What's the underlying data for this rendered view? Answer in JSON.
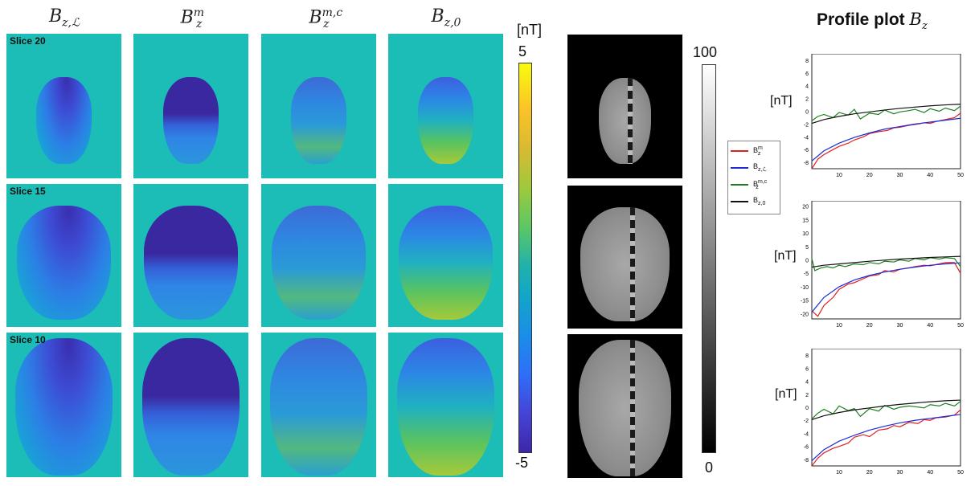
{
  "column_headers": [
    {
      "base": "B",
      "sub": "z,ℒ",
      "sup": ""
    },
    {
      "base": "B",
      "sub": "z",
      "sup": "m"
    },
    {
      "base": "B",
      "sub": "z",
      "sup": "m,c"
    },
    {
      "base": "B",
      "sub": "z,0",
      "sup": ""
    }
  ],
  "rows": [
    {
      "slice_label": "Slice 20"
    },
    {
      "slice_label": "Slice 15"
    },
    {
      "slice_label": "Slice 10"
    }
  ],
  "colorbar_field": {
    "unit": "[nT]",
    "max": "5",
    "min": "-5"
  },
  "colorbar_gray": {
    "max": "100",
    "min": "0"
  },
  "profile": {
    "title_text": "Profile plot ",
    "title_sym": "B",
    "title_sub": "z",
    "ylabel": "[nT]",
    "legend": [
      {
        "base": "B",
        "sup": "m",
        "sub": "z",
        "color": "#e02020"
      },
      {
        "base": "B",
        "sup": "",
        "sub": "z,ℒ",
        "color": "#1c2bd6"
      },
      {
        "base": "B",
        "sup": "m,c",
        "sub": "z",
        "color": "#208020"
      },
      {
        "base": "B",
        "sup": "",
        "sub": "z,0",
        "color": "#111111"
      }
    ]
  },
  "chart_data": [
    {
      "type": "line",
      "ylim": [
        -9,
        9
      ],
      "xlim": [
        1,
        50
      ],
      "xticks": [
        "10",
        "20",
        "30",
        "40",
        "50"
      ],
      "yticks": [
        "8",
        "6",
        "4",
        "2",
        "0",
        "-2",
        "-4",
        "-6",
        "-8"
      ],
      "ylabel": "[nT]",
      "series": [
        {
          "name_ref": 0,
          "values": [
            [
              1,
              -9
            ],
            [
              3,
              -7.5
            ],
            [
              5,
              -6.8
            ],
            [
              8,
              -6
            ],
            [
              10,
              -5.5
            ],
            [
              13,
              -5
            ],
            [
              15,
              -4.5
            ],
            [
              18,
              -4
            ],
            [
              20,
              -3.5
            ],
            [
              23,
              -3.2
            ],
            [
              26,
              -3
            ],
            [
              28,
              -2.6
            ],
            [
              30,
              -2.5
            ],
            [
              33,
              -2.2
            ],
            [
              36,
              -2
            ],
            [
              38,
              -1.8
            ],
            [
              40,
              -1.9
            ],
            [
              42,
              -1.6
            ],
            [
              45,
              -1.3
            ],
            [
              48,
              -1
            ],
            [
              50,
              -0.3
            ]
          ]
        },
        {
          "name_ref": 1,
          "values": [
            [
              1,
              -7.8
            ],
            [
              5,
              -6.2
            ],
            [
              10,
              -5
            ],
            [
              15,
              -4.1
            ],
            [
              20,
              -3.4
            ],
            [
              25,
              -2.8
            ],
            [
              30,
              -2.4
            ],
            [
              35,
              -2
            ],
            [
              40,
              -1.7
            ],
            [
              45,
              -1.4
            ],
            [
              50,
              -1.1
            ]
          ]
        },
        {
          "name_ref": 2,
          "values": [
            [
              1,
              -1.5
            ],
            [
              3,
              -0.8
            ],
            [
              5,
              -0.5
            ],
            [
              8,
              -1
            ],
            [
              10,
              -0.2
            ],
            [
              13,
              -0.6
            ],
            [
              15,
              0.3
            ],
            [
              17,
              -1.2
            ],
            [
              20,
              -0.3
            ],
            [
              23,
              -0.5
            ],
            [
              25,
              0.2
            ],
            [
              28,
              -0.4
            ],
            [
              30,
              -0.1
            ],
            [
              33,
              0.1
            ],
            [
              35,
              0.3
            ],
            [
              38,
              -0.2
            ],
            [
              40,
              0.4
            ],
            [
              43,
              0
            ],
            [
              45,
              0.5
            ],
            [
              48,
              0.1
            ],
            [
              50,
              0.8
            ]
          ]
        },
        {
          "name_ref": 3,
          "values": [
            [
              1,
              -1.9
            ],
            [
              5,
              -1.3
            ],
            [
              10,
              -0.8
            ],
            [
              15,
              -0.4
            ],
            [
              20,
              -0.1
            ],
            [
              25,
              0.2
            ],
            [
              30,
              0.45
            ],
            [
              35,
              0.65
            ],
            [
              40,
              0.85
            ],
            [
              45,
              1.0
            ],
            [
              50,
              1.1
            ]
          ]
        }
      ]
    },
    {
      "type": "line",
      "ylim": [
        -22,
        22
      ],
      "xlim": [
        1,
        50
      ],
      "xticks": [
        "10",
        "20",
        "30",
        "40",
        "50"
      ],
      "yticks": [
        "20",
        "15",
        "10",
        "5",
        "0",
        "-5",
        "-10",
        "-15",
        "-20"
      ],
      "ylabel": "[nT]",
      "series": [
        {
          "name_ref": 0,
          "values": [
            [
              1,
              -19
            ],
            [
              3,
              -21
            ],
            [
              5,
              -17
            ],
            [
              8,
              -14
            ],
            [
              10,
              -11
            ],
            [
              13,
              -9
            ],
            [
              15,
              -8.5
            ],
            [
              18,
              -7
            ],
            [
              20,
              -6
            ],
            [
              23,
              -5.5
            ],
            [
              25,
              -4
            ],
            [
              28,
              -4.5
            ],
            [
              30,
              -3.5
            ],
            [
              33,
              -3
            ],
            [
              35,
              -2.5
            ],
            [
              38,
              -2
            ],
            [
              40,
              -2.2
            ],
            [
              43,
              -1.5
            ],
            [
              45,
              -1
            ],
            [
              48,
              -1
            ],
            [
              50,
              -5
            ]
          ]
        },
        {
          "name_ref": 1,
          "values": [
            [
              1,
              -19.5
            ],
            [
              5,
              -14
            ],
            [
              10,
              -10
            ],
            [
              15,
              -7.5
            ],
            [
              20,
              -5.8
            ],
            [
              25,
              -4.5
            ],
            [
              30,
              -3.5
            ],
            [
              35,
              -2.7
            ],
            [
              40,
              -2
            ],
            [
              45,
              -1.5
            ],
            [
              50,
              -1.1
            ]
          ]
        },
        {
          "name_ref": 2,
          "values": [
            [
              1,
              0.5
            ],
            [
              2,
              -4
            ],
            [
              4,
              -3
            ],
            [
              6,
              -2.5
            ],
            [
              8,
              -3
            ],
            [
              10,
              -2
            ],
            [
              12,
              -2.5
            ],
            [
              15,
              -1.5
            ],
            [
              18,
              -1.8
            ],
            [
              20,
              -1
            ],
            [
              23,
              -1.5
            ],
            [
              25,
              -0.5
            ],
            [
              28,
              -0.8
            ],
            [
              30,
              0
            ],
            [
              33,
              -0.5
            ],
            [
              35,
              0.5
            ],
            [
              38,
              0
            ],
            [
              40,
              0.8
            ],
            [
              43,
              0.3
            ],
            [
              45,
              0.8
            ],
            [
              48,
              0.5
            ],
            [
              50,
              -2.5
            ]
          ]
        },
        {
          "name_ref": 3,
          "values": [
            [
              1,
              -2.7
            ],
            [
              5,
              -2
            ],
            [
              10,
              -1.5
            ],
            [
              15,
              -1
            ],
            [
              20,
              -0.5
            ],
            [
              25,
              -0.1
            ],
            [
              30,
              0.3
            ],
            [
              35,
              0.6
            ],
            [
              40,
              0.9
            ],
            [
              45,
              1.1
            ],
            [
              50,
              1.3
            ]
          ]
        }
      ]
    },
    {
      "type": "line",
      "ylim": [
        -9,
        9
      ],
      "xlim": [
        1,
        50
      ],
      "xticks": [
        "10",
        "20",
        "30",
        "40",
        "50"
      ],
      "yticks": [
        "8",
        "6",
        "4",
        "2",
        "0",
        "-2",
        "-4",
        "-6",
        "-8"
      ],
      "ylabel": "[nT]",
      "series": [
        {
          "name_ref": 0,
          "values": [
            [
              1,
              -9
            ],
            [
              3,
              -7.8
            ],
            [
              5,
              -7
            ],
            [
              8,
              -6.3
            ],
            [
              10,
              -6
            ],
            [
              13,
              -5.5
            ],
            [
              15,
              -4.6
            ],
            [
              18,
              -4.2
            ],
            [
              20,
              -4.5
            ],
            [
              23,
              -3.5
            ],
            [
              26,
              -3.3
            ],
            [
              28,
              -2.8
            ],
            [
              30,
              -3
            ],
            [
              33,
              -2.3
            ],
            [
              36,
              -2.5
            ],
            [
              38,
              -1.9
            ],
            [
              40,
              -2
            ],
            [
              42,
              -1.6
            ],
            [
              45,
              -1.5
            ],
            [
              48,
              -1.2
            ],
            [
              50,
              -0.4
            ]
          ]
        },
        {
          "name_ref": 1,
          "values": [
            [
              1,
              -8.2
            ],
            [
              5,
              -6.5
            ],
            [
              10,
              -5.2
            ],
            [
              15,
              -4.3
            ],
            [
              20,
              -3.5
            ],
            [
              25,
              -2.9
            ],
            [
              30,
              -2.4
            ],
            [
              35,
              -2
            ],
            [
              40,
              -1.7
            ],
            [
              45,
              -1.4
            ],
            [
              50,
              -1.1
            ]
          ]
        },
        {
          "name_ref": 2,
          "values": [
            [
              1,
              -1.8
            ],
            [
              3,
              -0.9
            ],
            [
              5,
              -0.3
            ],
            [
              8,
              -1
            ],
            [
              10,
              0.2
            ],
            [
              13,
              -0.5
            ],
            [
              15,
              -0.2
            ],
            [
              17,
              -1.4
            ],
            [
              20,
              -0.2
            ],
            [
              23,
              -0.6
            ],
            [
              25,
              0.3
            ],
            [
              28,
              -0.3
            ],
            [
              30,
              0
            ],
            [
              33,
              0.2
            ],
            [
              35,
              0.1
            ],
            [
              38,
              -0.1
            ],
            [
              40,
              0.4
            ],
            [
              43,
              0.2
            ],
            [
              45,
              0.6
            ],
            [
              48,
              0.2
            ],
            [
              50,
              0.9
            ]
          ]
        },
        {
          "name_ref": 3,
          "values": [
            [
              1,
              -1.9
            ],
            [
              5,
              -1.3
            ],
            [
              10,
              -0.8
            ],
            [
              15,
              -0.4
            ],
            [
              20,
              -0.1
            ],
            [
              25,
              0.2
            ],
            [
              30,
              0.45
            ],
            [
              35,
              0.65
            ],
            [
              40,
              0.85
            ],
            [
              45,
              1.0
            ],
            [
              50,
              1.1
            ]
          ]
        }
      ]
    }
  ]
}
